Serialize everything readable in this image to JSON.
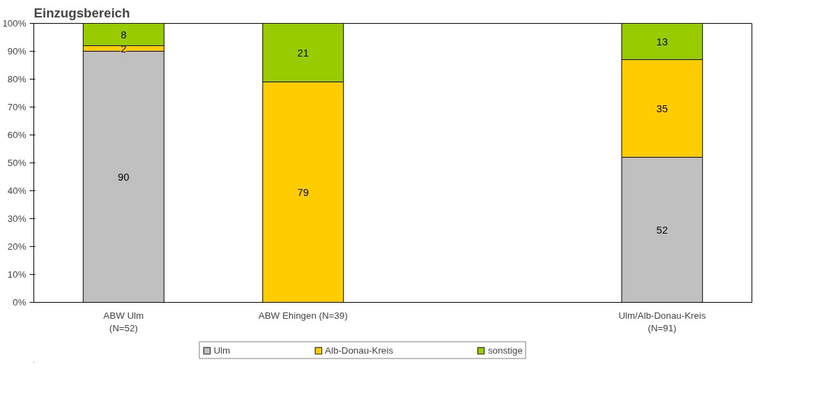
{
  "chart_data": {
    "type": "bar",
    "title": "Einzugsbereich",
    "stacked": true,
    "data_labels": true,
    "grid": false,
    "legend": "bottom",
    "categories": [
      "ABW Ulm\n(N=52)",
      "ABW Ehingen (N=39)",
      null,
      "Ulm/Alb-Donau-Kreis\n(N=91)"
    ],
    "series": [
      {
        "name": "Ulm",
        "color": "#c0c0c0",
        "values": [
          90,
          null,
          null,
          52
        ]
      },
      {
        "name": "Alb-Donau-Kreis",
        "color": "#ffcc00",
        "values": [
          2,
          79,
          null,
          35
        ]
      },
      {
        "name": "sonstige",
        "color": "#99cc00",
        "values": [
          8,
          21,
          null,
          13
        ]
      }
    ],
    "ylim": [
      0,
      100
    ],
    "yticks": [
      {
        "value": 0,
        "label": "0%"
      },
      {
        "value": 10,
        "label": "10%"
      },
      {
        "value": 20,
        "label": "20%"
      },
      {
        "value": 30,
        "label": "30%"
      },
      {
        "value": 40,
        "label": "40%"
      },
      {
        "value": 50,
        "label": "50%"
      },
      {
        "value": 60,
        "label": "60%"
      },
      {
        "value": 70,
        "label": "70%"
      },
      {
        "value": 80,
        "label": "80%"
      },
      {
        "value": 90,
        "label": "90%"
      },
      {
        "value": 100,
        "label": "100%"
      }
    ]
  }
}
